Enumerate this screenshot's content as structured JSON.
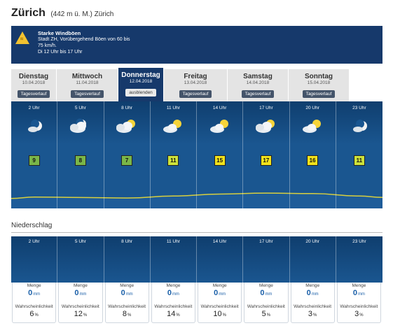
{
  "location": {
    "name": "Zürich",
    "detail": "(442 m ü. M.) Zürich"
  },
  "warning": {
    "title": "Starke Windböen",
    "lines": [
      "Stadt ZH, Vorübergehend Böen von 60 bis",
      "75 km/h.",
      "Di 12 Uhr bis 17 Uhr"
    ],
    "icon": "wind-warning-icon"
  },
  "days": [
    {
      "name": "Dienstag",
      "date": "10.04.2018",
      "button": "Tagesverlauf",
      "active": false
    },
    {
      "name": "Mittwoch",
      "date": "11.04.2018",
      "button": "Tagesverlauf",
      "active": false
    },
    {
      "name": "Donnerstag",
      "date": "12.04.2018",
      "button": "ausblenden",
      "active": true
    },
    {
      "name": "Freitag",
      "date": "13.04.2018",
      "button": "Tagesverlauf",
      "active": false
    },
    {
      "name": "Samstag",
      "date": "14.04.2018",
      "button": "Tagesverlauf",
      "active": false
    },
    {
      "name": "Sonntag",
      "date": "15.04.2018",
      "button": "Tagesverlauf",
      "active": false
    }
  ],
  "hourly": [
    {
      "hour": "2 Uhr",
      "icon": "moon-cloud-icon",
      "temp": "9",
      "color": "#7ab648"
    },
    {
      "hour": "5 Uhr",
      "icon": "cloud-moon-icon",
      "temp": "8",
      "color": "#7ab648"
    },
    {
      "hour": "8 Uhr",
      "icon": "cloud-sun-icon",
      "temp": "7",
      "color": "#7ab648"
    },
    {
      "hour": "11 Uhr",
      "icon": "sun-cloud-icon",
      "temp": "11",
      "color": "#cde23a"
    },
    {
      "hour": "14 Uhr",
      "icon": "sun-cloud-icon",
      "temp": "15",
      "color": "#f2e21b"
    },
    {
      "hour": "17 Uhr",
      "icon": "cloud-sun-icon",
      "temp": "17",
      "color": "#f2e21b"
    },
    {
      "hour": "20 Uhr",
      "icon": "sun-cloud-icon",
      "temp": "16",
      "color": "#f2e21b"
    },
    {
      "hour": "23 Uhr",
      "icon": "moon-cloud-icon",
      "temp": "11",
      "color": "#cde23a"
    }
  ],
  "precipitation": {
    "title": "Niederschlag",
    "amount_label": "Menge",
    "unit_mm": "mm",
    "prob_label": "Wahrscheinlichkeit",
    "unit_pct": "%",
    "slots": [
      {
        "hour": "2 Uhr",
        "amount": "0",
        "prob": "6"
      },
      {
        "hour": "5 Uhr",
        "amount": "0",
        "prob": "12"
      },
      {
        "hour": "8 Uhr",
        "amount": "0",
        "prob": "8"
      },
      {
        "hour": "11 Uhr",
        "amount": "0",
        "prob": "14"
      },
      {
        "hour": "14 Uhr",
        "amount": "0",
        "prob": "10"
      },
      {
        "hour": "17 Uhr",
        "amount": "0",
        "prob": "5"
      },
      {
        "hour": "20 Uhr",
        "amount": "0",
        "prob": "3"
      },
      {
        "hour": "23 Uhr",
        "amount": "0",
        "prob": "3"
      }
    ]
  }
}
